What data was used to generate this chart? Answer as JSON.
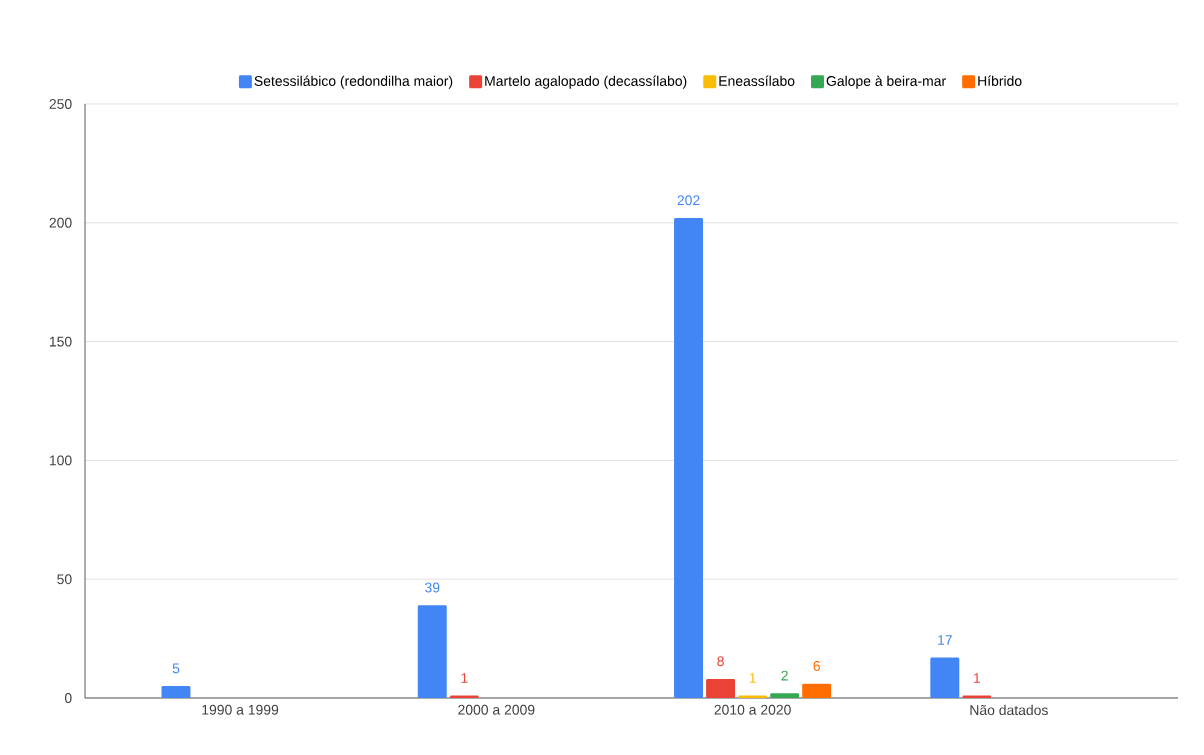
{
  "chart_data": {
    "type": "bar",
    "categories": [
      "1990 a 1999",
      "2000 a 2009",
      "2010 a 2020",
      "Não datados"
    ],
    "series": [
      {
        "name": "Setessilábico (redondilha maior)",
        "color": "#4285f4",
        "values": [
          5,
          39,
          202,
          17
        ]
      },
      {
        "name": "Martelo agalopado (decassílabo)",
        "color": "#ea4335",
        "values": [
          null,
          1,
          8,
          1
        ]
      },
      {
        "name": "Eneassílabo",
        "color": "#fbbc04",
        "values": [
          null,
          null,
          1,
          null
        ]
      },
      {
        "name": "Galope à beira-mar",
        "color": "#34a853",
        "values": [
          null,
          null,
          2,
          null
        ]
      },
      {
        "name": "Híbrido",
        "color": "#ff6d01",
        "values": [
          null,
          null,
          6,
          null
        ]
      }
    ],
    "ylim": [
      0,
      250
    ],
    "yticks": [
      0,
      50,
      100,
      150,
      200,
      250
    ],
    "grid": "y",
    "legend": "top",
    "data_labels": true
  }
}
